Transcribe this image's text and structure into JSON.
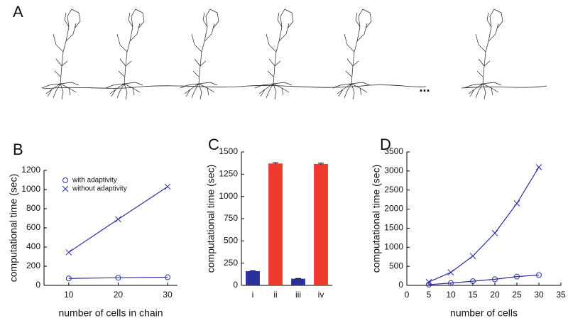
{
  "figure_a": {
    "label": "A",
    "ellipsis": "..."
  },
  "chart_data": [
    {
      "type": "line",
      "panel": "B",
      "xlabel": "number of cells in chain",
      "ylabel": "computational time (sec)",
      "x": [
        10,
        20,
        30
      ],
      "xlim": [
        5,
        32
      ],
      "xticks": [
        10,
        20,
        30
      ],
      "ylim": [
        0,
        1200
      ],
      "yticks": [
        0,
        200,
        400,
        600,
        800,
        1000,
        1200
      ],
      "legend": "upper left",
      "series": [
        {
          "name": "with adaptivity",
          "color": "#2b2f9e",
          "marker": "o",
          "values": [
            72,
            80,
            85
          ]
        },
        {
          "name": "without adaptivity",
          "color": "#2b2f9e",
          "marker": "x",
          "values": [
            345,
            690,
            1030
          ]
        }
      ]
    },
    {
      "type": "bar",
      "panel": "C",
      "ylabel": "computational time (sec)",
      "categories": [
        "i",
        "ii",
        "iii",
        "iv"
      ],
      "values": [
        160,
        1370,
        75,
        1365
      ],
      "errors": [
        5,
        8,
        3,
        8
      ],
      "colors": [
        "#2b2f9e",
        "#ee3a2e",
        "#2b2f9e",
        "#ee3a2e"
      ],
      "ylim": [
        0,
        1500
      ],
      "yticks": [
        0,
        250,
        500,
        750,
        1000,
        1250,
        1500
      ]
    },
    {
      "type": "line",
      "panel": "D",
      "xlabel": "number of cells",
      "ylabel": "computational time (sec)",
      "x": [
        5,
        10,
        15,
        20,
        25,
        30
      ],
      "xlim": [
        0,
        35
      ],
      "xticks": [
        0,
        5,
        10,
        15,
        20,
        25,
        30,
        35
      ],
      "ylim": [
        0,
        3500
      ],
      "yticks": [
        0,
        500,
        1000,
        1500,
        2000,
        2500,
        3000,
        3500
      ],
      "series": [
        {
          "name": "with adaptivity",
          "color": "#2b2f9e",
          "marker": "o",
          "values": [
            20,
            60,
            110,
            160,
            230,
            270
          ]
        },
        {
          "name": "without adaptivity",
          "color": "#2b2f9e",
          "marker": "x",
          "values": [
            90,
            340,
            770,
            1370,
            2150,
            3100
          ]
        }
      ]
    }
  ]
}
